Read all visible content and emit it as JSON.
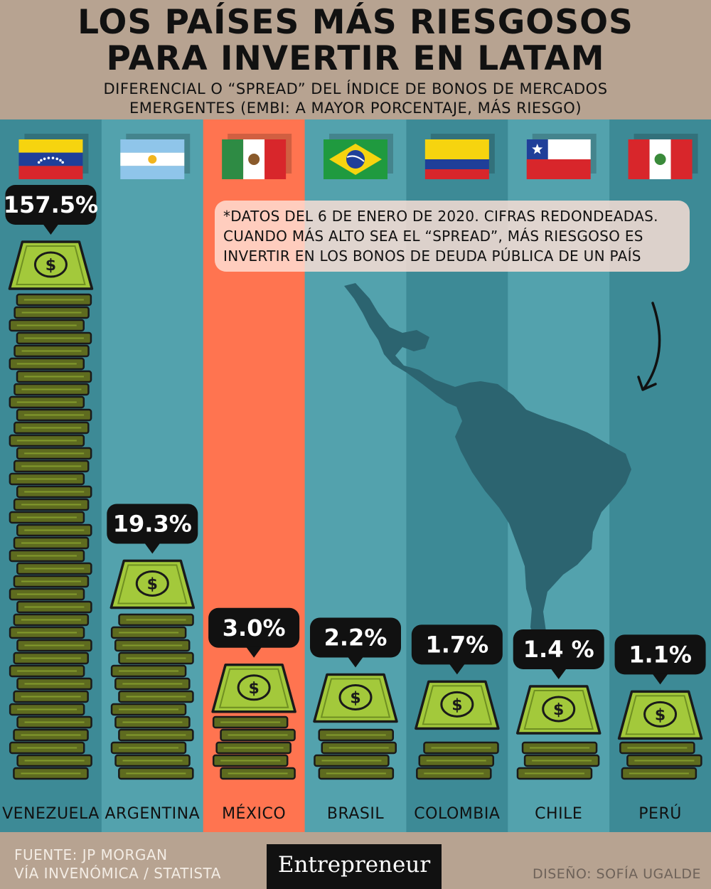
{
  "header": {
    "title_line1": "LOS PAÍSES MÁS RIESGOSOS",
    "title_line2": "PARA INVERTIR EN LATAM",
    "subtitle_line1": "DIFERENCIAL O “SPREAD” DEL ÍNDICE DE BONOS DE MERCADOS",
    "subtitle_line2": "EMERGENTES (EMBI: A MAYOR PORCENTAJE, MÁS RIESGO)"
  },
  "note": {
    "line1": "*DATOS DEL 6 DE ENERO DE 2020. CIFRAS REDONDEADAS.",
    "line2": "CUANDO MÁS ALTO SEA EL “SPREAD”, MÁS RIESGOSO ES",
    "line3": "INVERTIR EN LOS BONOS DE DEUDA PÚBLICA DE UN PAÍS"
  },
  "chart_data": {
    "type": "bar",
    "categories": [
      "VENEZUELA",
      "ARGENTINA",
      "MÉXICO",
      "BRASIL",
      "COLOMBIA",
      "CHILE",
      "PERÚ"
    ],
    "values": [
      157.5,
      19.3,
      3.0,
      2.2,
      1.7,
      1.4,
      1.1
    ],
    "value_labels": [
      "157.5%",
      "19.3%",
      "3.0%",
      "2.2%",
      "1.7%",
      "1.4 %",
      "1.1%"
    ],
    "unit": "%",
    "highlight": "MÉXICO",
    "flags": [
      "venezuela-flag",
      "argentina-flag",
      "mexico-flag",
      "brazil-flag",
      "colombia-flag",
      "chile-flag",
      "peru-flag"
    ]
  },
  "colors": {
    "background": "#b7a391",
    "column_dark": "#3d8a96",
    "column_light": "#53a2ad",
    "highlight": "#ff7450",
    "money_dark": "#5e6b1f",
    "money_light": "#a3c93b",
    "map": "#2c6470"
  },
  "footer": {
    "source_line1": "FUENTE: JP MORGAN",
    "source_line2": "VÍA INVENÓMICA / STATISTA",
    "logo": "Entrepreneur",
    "credit": "DISEÑO: SOFÍA UGALDE"
  }
}
